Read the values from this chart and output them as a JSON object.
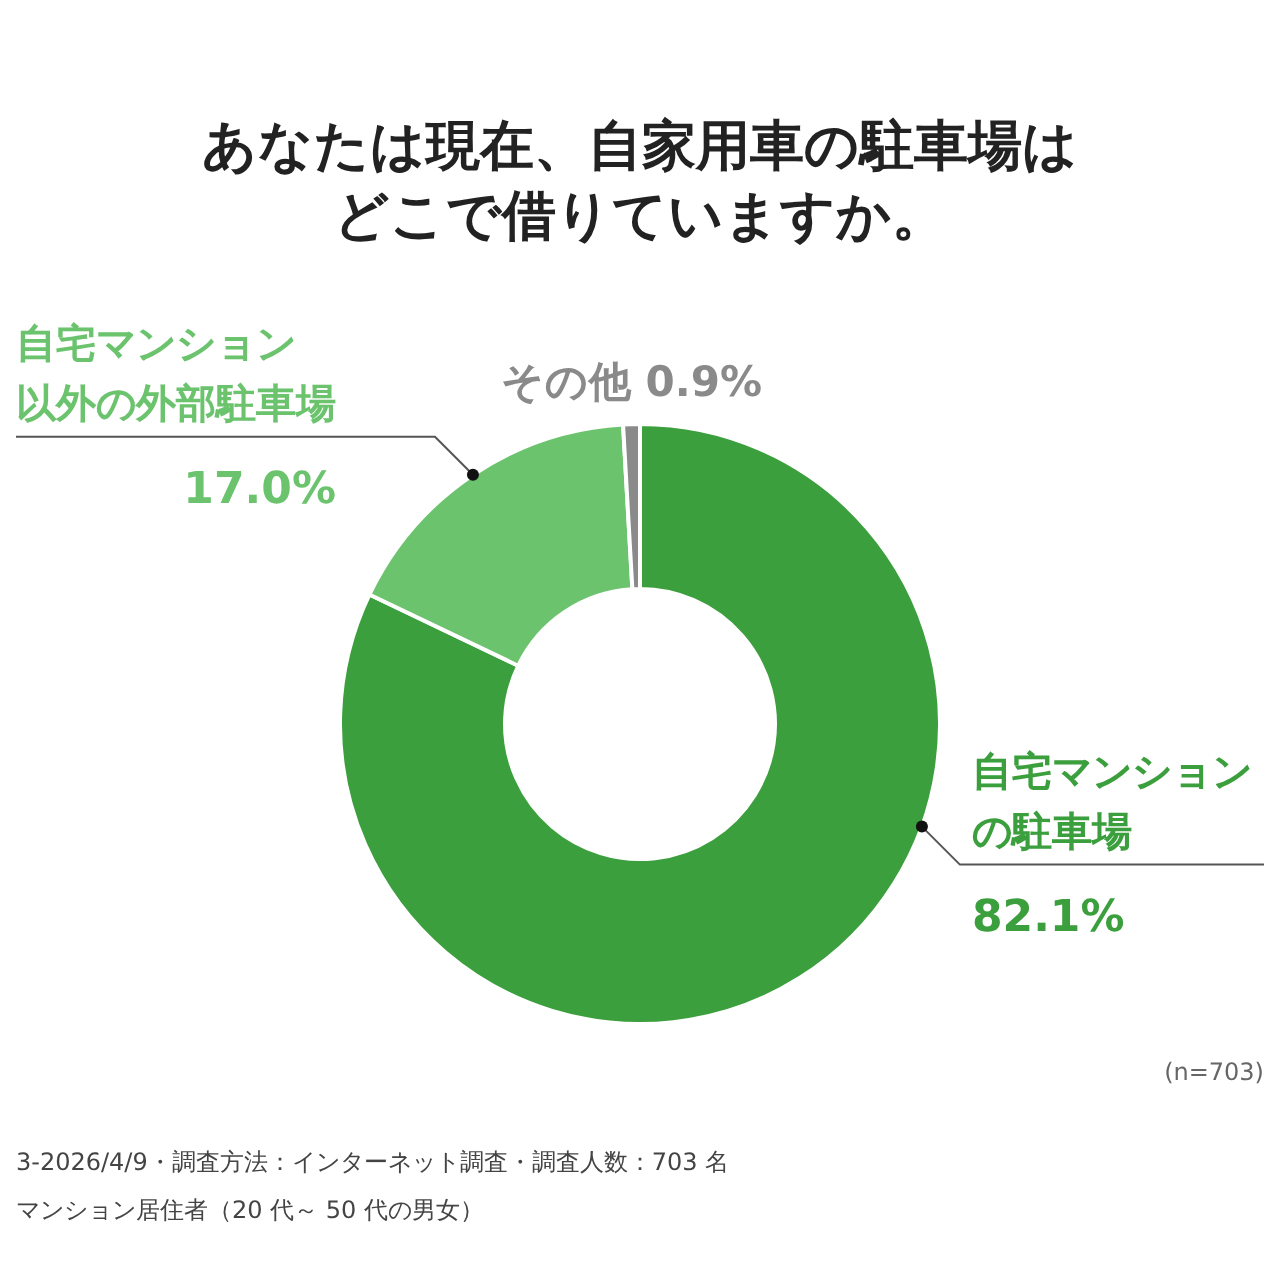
{
  "chart_data": {
    "type": "donut",
    "title": "あなたは現在、自家用車の駐車場はどこで借りていますか。",
    "categories": [
      "自宅マンションの駐車場",
      "自宅マンション以外の外部駐車場",
      "その他"
    ],
    "values": [
      82.1,
      17.0,
      0.9
    ],
    "colors": [
      "#3a9f3c",
      "#6cc36e",
      "#8a8a8a"
    ],
    "value_labels": [
      "82.1%",
      "17.0%",
      "0.9%"
    ],
    "annotations": [
      "(n=703)",
      "3-2026/4/9・調査方法：インターネット調査・調査人数：703 名",
      "マンション居住者（20 代～ 50 代の男女）"
    ]
  }
}
